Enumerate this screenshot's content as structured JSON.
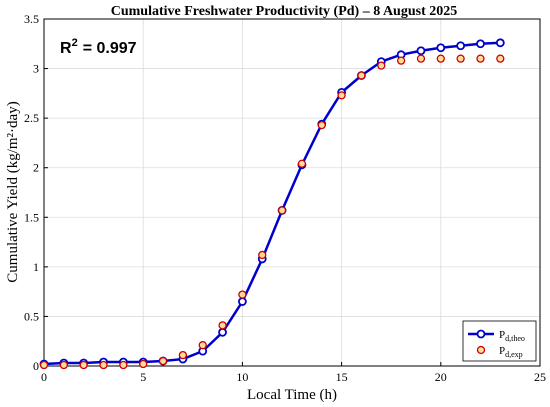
{
  "chart_data": {
    "type": "line",
    "title": "Cumulative Freshwater Productivity (Pd) – 8 August 2025",
    "xlabel": "Local Time (h)",
    "ylabel": "Cumulative Yield (kg/m²·day)",
    "xlim": [
      0,
      25
    ],
    "ylim": [
      0,
      3.5
    ],
    "xticks": [
      0,
      5,
      10,
      15,
      20,
      25
    ],
    "yticks": [
      0,
      0.5,
      1,
      1.5,
      2,
      2.5,
      3,
      3.5
    ],
    "xtick_labels": [
      "0",
      "5",
      "10",
      "15",
      "20",
      "25"
    ],
    "ytick_labels": [
      "0",
      "0.5",
      "1",
      "1.5",
      "2",
      "2.5",
      "3",
      "3.5"
    ],
    "grid": true,
    "legend_position": "bottom-right",
    "annotation": {
      "r2_label": "R",
      "r2_sup": "2",
      "r2_value": "= 0.997"
    },
    "series": [
      {
        "name": "P",
        "name_sub": "d,theo",
        "style": "line-with-markers",
        "color": "#0000cc",
        "x": [
          0,
          1,
          2,
          3,
          4,
          5,
          6,
          7,
          8,
          9,
          10,
          11,
          12,
          13,
          14,
          15,
          16,
          17,
          18,
          19,
          20,
          21,
          22,
          23
        ],
        "values": [
          0.02,
          0.03,
          0.03,
          0.04,
          0.04,
          0.04,
          0.05,
          0.07,
          0.15,
          0.34,
          0.65,
          1.08,
          1.57,
          2.03,
          2.44,
          2.76,
          2.93,
          3.07,
          3.14,
          3.18,
          3.21,
          3.23,
          3.25,
          3.26
        ]
      },
      {
        "name": "P",
        "name_sub": "d,exp",
        "style": "markers",
        "color": "#cc0000",
        "fill": "#ffdd99",
        "x": [
          0,
          1,
          2,
          3,
          4,
          5,
          6,
          7,
          8,
          9,
          10,
          11,
          12,
          13,
          14,
          15,
          16,
          17,
          18,
          19,
          20,
          21,
          22,
          23
        ],
        "values": [
          0.01,
          0.01,
          0.01,
          0.01,
          0.01,
          0.02,
          0.05,
          0.11,
          0.21,
          0.41,
          0.72,
          1.12,
          1.57,
          2.04,
          2.43,
          2.73,
          2.93,
          3.03,
          3.08,
          3.1,
          3.1,
          3.1,
          3.1,
          3.1
        ]
      }
    ]
  }
}
